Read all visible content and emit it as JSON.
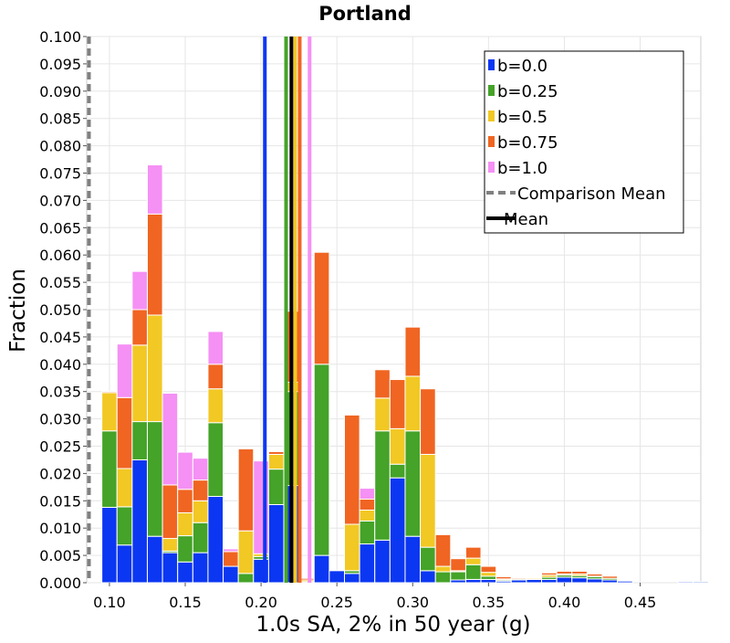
{
  "chart_data": {
    "type": "bar",
    "stacked": true,
    "title": "Portland",
    "xlabel": "1.0s SA, 2% in 50 year (g)",
    "ylabel": "Fraction",
    "xlim": [
      0.085,
      0.49
    ],
    "ylim": [
      0,
      0.1
    ],
    "grid": true,
    "legend_position": "top-right",
    "bin_width": 0.01,
    "x_ticks": [
      0.1,
      0.15,
      0.2,
      0.25,
      0.3,
      0.35,
      0.4,
      0.45
    ],
    "x_tick_labels": [
      "0.10",
      "0.15",
      "0.20",
      "0.25",
      "0.30",
      "0.35",
      "0.40",
      "0.45"
    ],
    "y_ticks": [
      0.0,
      0.005,
      0.01,
      0.015,
      0.02,
      0.025,
      0.03,
      0.035,
      0.04,
      0.045,
      0.05,
      0.055,
      0.06,
      0.065,
      0.07,
      0.075,
      0.08,
      0.085,
      0.09,
      0.095,
      0.1
    ],
    "y_tick_labels": [
      "0.000",
      "0.005",
      "0.010",
      "0.015",
      "0.020",
      "0.025",
      "0.030",
      "0.035",
      "0.040",
      "0.045",
      "0.050",
      "0.055",
      "0.060",
      "0.065",
      "0.070",
      "0.075",
      "0.080",
      "0.085",
      "0.090",
      "0.095",
      "0.100"
    ],
    "bin_starts": [
      0.095,
      0.105,
      0.115,
      0.125,
      0.135,
      0.145,
      0.155,
      0.165,
      0.175,
      0.185,
      0.195,
      0.205,
      0.215,
      0.225,
      0.235,
      0.245,
      0.255,
      0.265,
      0.275,
      0.285,
      0.295,
      0.305,
      0.315,
      0.325,
      0.335,
      0.345,
      0.355,
      0.365,
      0.375,
      0.385,
      0.395,
      0.405,
      0.415,
      0.425,
      0.435,
      0.445,
      0.455,
      0.465,
      0.475,
      0.485
    ],
    "series": [
      {
        "name": "b=0.0",
        "color": "#0b37f2",
        "values": [
          0.0138,
          0.0069,
          0.0225,
          0.0085,
          0.0055,
          0.0038,
          0.0055,
          0.0158,
          0.003,
          0.0,
          0.0043,
          0.0143,
          0.0178,
          0.0,
          0.005,
          0.0022,
          0.0017,
          0.0071,
          0.0078,
          0.0192,
          0.0085,
          0.0022,
          0.0,
          0.0005,
          0.0006,
          0.0006,
          0.0003,
          0.0005,
          0.0006,
          0.0006,
          0.001,
          0.0009,
          0.0007,
          0.0005,
          0.0003,
          0.0,
          0.0,
          0.0,
          0.0002,
          0.0002
        ]
      },
      {
        "name": "b=0.25",
        "color": "#44a328",
        "values": [
          0.014,
          0.007,
          0.007,
          0.021,
          0.0003,
          0.0048,
          0.0055,
          0.0135,
          0.0,
          0.0017,
          0.0005,
          0.0065,
          0.0172,
          0.0002,
          0.035,
          0.0,
          0.0005,
          0.0042,
          0.02,
          0.0025,
          0.0193,
          0.0043,
          0.002,
          0.0015,
          0.0027,
          0.0006,
          0.0002,
          0.0002,
          0.0,
          0.0004,
          0.0004,
          0.0004,
          0.0004,
          0.0003,
          0.0,
          0.0,
          0.0,
          0.0,
          0.0,
          0.0
        ]
      },
      {
        "name": "b=0.5",
        "color": "#f2c824",
        "values": [
          0.007,
          0.007,
          0.014,
          0.0195,
          0.0023,
          0.0042,
          0.004,
          0.0062,
          0.0,
          0.0078,
          0.0005,
          0.0027,
          0.0017,
          0.0003,
          0.0,
          0.0,
          0.0085,
          0.002,
          0.006,
          0.0065,
          0.01,
          0.017,
          0.001,
          0.0002,
          0.0012,
          0.0007,
          0.0002,
          0.0,
          0.0002,
          0.0004,
          0.0002,
          0.0003,
          0.0001,
          0.0,
          0.0,
          0.0,
          0.0,
          0.0,
          0.0,
          0.0
        ]
      },
      {
        "name": "b=0.75",
        "color": "#f06522",
        "values": [
          0.0002,
          0.013,
          0.0065,
          0.0185,
          0.0098,
          0.0043,
          0.0038,
          0.0045,
          0.0027,
          0.015,
          0.0,
          0.0005,
          0.013,
          0.0003,
          0.0205,
          0.0,
          0.02,
          0.002,
          0.0052,
          0.009,
          0.009,
          0.012,
          0.0058,
          0.0022,
          0.002,
          0.0011,
          0.0004,
          0.0002,
          0.0,
          0.0004,
          0.0005,
          0.0005,
          0.0004,
          0.0004,
          0.0,
          0.0,
          0.0,
          0.0,
          0.0,
          0.0
        ]
      },
      {
        "name": "b=1.0",
        "color": "#f590f5",
        "values": [
          0.0,
          0.0098,
          0.007,
          0.009,
          0.0168,
          0.0068,
          0.004,
          0.006,
          0.0005,
          0.0,
          0.017,
          0.0,
          0.0,
          0.0,
          0.0,
          0.0,
          0.0,
          0.002,
          0.0,
          0.0,
          0.0,
          0.0,
          0.0,
          0.0,
          0.0,
          0.0,
          0.0,
          0.0,
          0.0,
          0.0,
          0.0,
          0.0,
          0.0,
          0.0,
          0.0,
          0.0,
          0.0,
          0.0,
          0.0,
          0.0
        ]
      }
    ],
    "vertical_lines": [
      {
        "name": "b=0.0",
        "x": 0.2025,
        "color": "#0b37f2",
        "style": "solid"
      },
      {
        "name": "b=0.25",
        "x": 0.2165,
        "color": "#44a328",
        "style": "solid"
      },
      {
        "name": "b=0.5",
        "x": 0.2225,
        "color": "#f2c824",
        "style": "solid"
      },
      {
        "name": "b=0.75",
        "x": 0.2255,
        "color": "#f06522",
        "style": "solid"
      },
      {
        "name": "b=1.0",
        "x": 0.232,
        "color": "#f590f5",
        "style": "solid"
      },
      {
        "name": "Comparison Mean",
        "x": 0.0865,
        "color": "#808080",
        "style": "dashed"
      },
      {
        "name": "Mean",
        "x": 0.22,
        "color": "#000000",
        "style": "solid"
      }
    ],
    "legend": [
      {
        "label": "b=0.0",
        "color": "#0b37f2",
        "symbol": "box"
      },
      {
        "label": "b=0.25",
        "color": "#44a328",
        "symbol": "box"
      },
      {
        "label": "b=0.5",
        "color": "#f2c824",
        "symbol": "box"
      },
      {
        "label": "b=0.75",
        "color": "#f06522",
        "symbol": "box"
      },
      {
        "label": "b=1.0",
        "color": "#f590f5",
        "symbol": "box"
      },
      {
        "label": "Comparison Mean",
        "color": "#808080",
        "symbol": "dashed-line"
      },
      {
        "label": "Mean",
        "color": "#000000",
        "symbol": "line"
      }
    ]
  }
}
